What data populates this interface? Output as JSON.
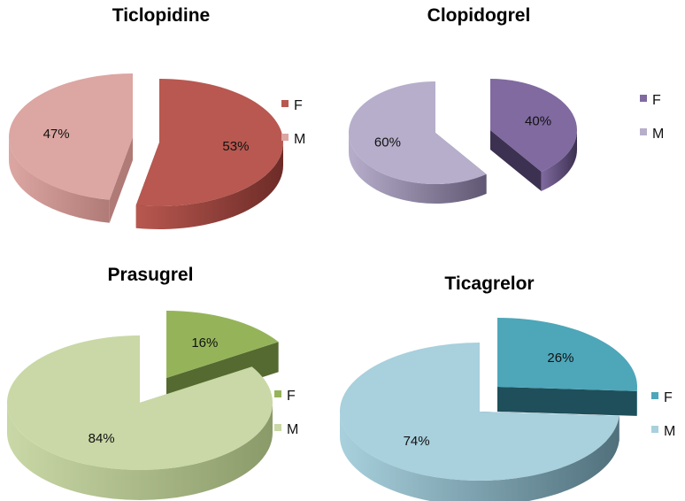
{
  "chart_data": [
    {
      "type": "pie",
      "title": "Ticlopidine",
      "slices": [
        {
          "name": "F",
          "value": 53,
          "label": "53%",
          "color": "#b85850",
          "side_color": "#6d2b27"
        },
        {
          "name": "M",
          "value": 47,
          "label": "47%",
          "color": "#dca6a2",
          "side_color": "#b07a76"
        }
      ],
      "legend": {
        "placement": "right",
        "entries": [
          "F",
          "M"
        ]
      }
    },
    {
      "type": "pie",
      "title": "Clopidogrel",
      "slices": [
        {
          "name": "F",
          "value": 40,
          "label": "40%",
          "color": "#806aa0",
          "side_color": "#3c3150"
        },
        {
          "name": "M",
          "value": 60,
          "label": "60%",
          "color": "#b7aecb",
          "side_color": "#605873"
        }
      ],
      "legend": {
        "placement": "right",
        "entries": [
          "F",
          "M"
        ]
      }
    },
    {
      "type": "pie",
      "title": "Prasugrel",
      "slices": [
        {
          "name": "F",
          "value": 16,
          "label": "16%",
          "color": "#95b45a",
          "side_color": "#556a30"
        },
        {
          "name": "M",
          "value": 84,
          "label": "84%",
          "color": "#c9d8a6",
          "side_color": "#8a9a68"
        }
      ],
      "legend": {
        "placement": "right",
        "entries": [
          "F",
          "M"
        ]
      }
    },
    {
      "type": "pie",
      "title": "Ticagrelor",
      "slices": [
        {
          "name": "F",
          "value": 26,
          "label": "26%",
          "color": "#4ea6b9",
          "side_color": "#1e4f5a"
        },
        {
          "name": "M",
          "value": 74,
          "label": "74%",
          "color": "#a8d0dd",
          "side_color": "#50707c"
        }
      ],
      "legend": {
        "placement": "right",
        "entries": [
          "F",
          "M"
        ]
      }
    }
  ]
}
